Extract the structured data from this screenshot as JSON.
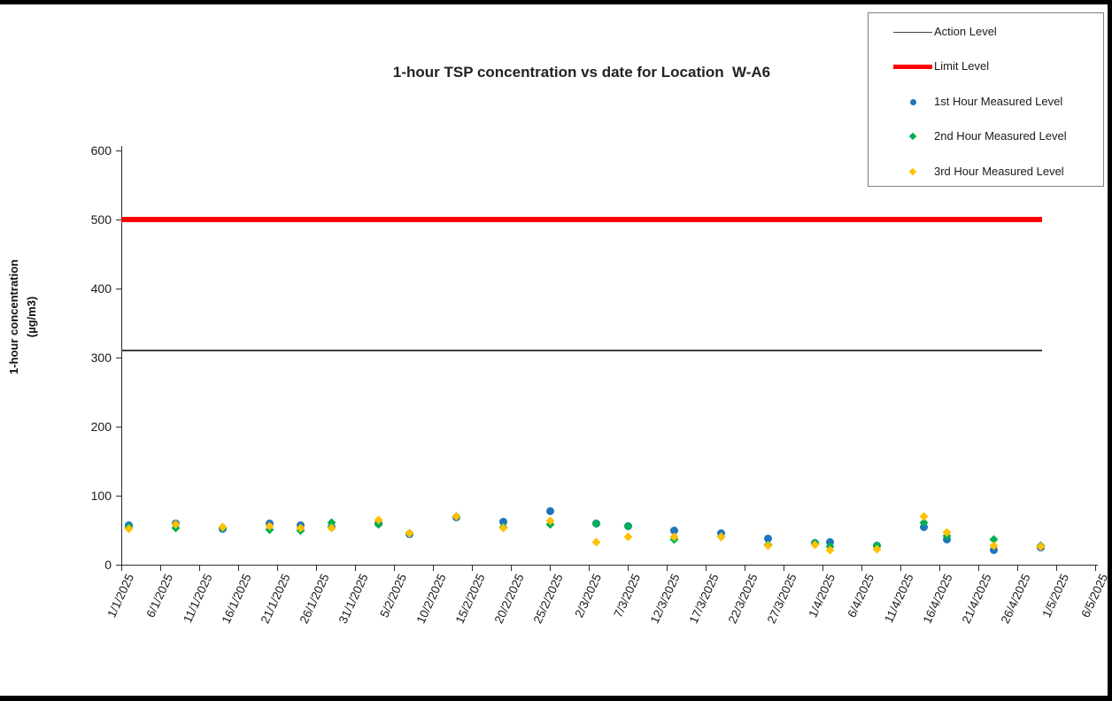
{
  "title": "1-hour TSP concentration vs date for Location  W-A6",
  "y_axis": {
    "label_line1": "1-hour concentration",
    "label_line2": "(µg/m3)"
  },
  "legend": {
    "items": [
      {
        "label": "Action Level",
        "swatch": "thin-line",
        "color": "#404040"
      },
      {
        "label": "Limit Level",
        "swatch": "thick-line",
        "color": "#FF0000"
      },
      {
        "label": "1st Hour Measured Level",
        "swatch": "circle",
        "color": "#1F75BC"
      },
      {
        "label": "2nd Hour Measured Level",
        "swatch": "diamond",
        "color": "#00B050"
      },
      {
        "label": "3rd Hour Measured Level",
        "swatch": "diamond",
        "color": "#FFC000"
      }
    ]
  },
  "chart_data": {
    "type": "scatter",
    "title": "1-hour TSP concentration vs date for Location  W-A6",
    "xlabel": "date",
    "ylabel": "1-hour concentration (µg/m3)",
    "ylim": [
      0,
      600
    ],
    "y_ticks": [
      0,
      100,
      200,
      300,
      400,
      500,
      600
    ],
    "x_tick_labels": [
      "1/1/2025",
      "6/1/2025",
      "11/1/2025",
      "16/1/2025",
      "21/1/2025",
      "26/1/2025",
      "31/1/2025",
      "5/2/2025",
      "10/2/2025",
      "15/2/2025",
      "20/2/2025",
      "25/2/2025",
      "2/3/2025",
      "7/3/2025",
      "12/3/2025",
      "17/3/2025",
      "22/3/2025",
      "27/3/2025",
      "1/4/2025",
      "6/4/2025",
      "11/4/2025",
      "16/4/2025",
      "21/4/2025",
      "26/4/2025",
      "1/5/2025",
      "6/5/2025"
    ],
    "grid": false,
    "legend_position": "top-right",
    "reference_lines": [
      {
        "name": "Action Level",
        "value": 310,
        "color": "#404040",
        "style": "thin",
        "span": [
          "1/1/2025",
          "29/4/2025"
        ]
      },
      {
        "name": "Limit Level",
        "value": 500,
        "color": "#FF0000",
        "style": "thick",
        "span": [
          "1/1/2025",
          "29/4/2025"
        ]
      }
    ],
    "x": [
      "2/1/2025",
      "8/1/2025",
      "14/1/2025",
      "20/1/2025",
      "24/1/2025",
      "28/1/2025",
      "3/2/2025",
      "7/2/2025",
      "13/2/2025",
      "19/2/2025",
      "25/2/2025",
      "3/3/2025",
      "7/3/2025",
      "13/3/2025",
      "19/3/2025",
      "25/3/2025",
      "31/3/2025",
      "2/4/2025",
      "8/4/2025",
      "14/4/2025",
      "17/4/2025",
      "23/4/2025",
      "29/4/2025"
    ],
    "series": [
      {
        "name": "1st Hour Measured Level",
        "marker": "circle",
        "color": "#1F75BC",
        "values": [
          57,
          60,
          52,
          60,
          57,
          55,
          60,
          44,
          69,
          62,
          77,
          59,
          56,
          49,
          46,
          38,
          31,
          33,
          27,
          55,
          37,
          21,
          25
        ]
      },
      {
        "name": "2nd Hour Measured Level",
        "marker": "diamond",
        "color": "#00B050",
        "values": [
          55,
          53,
          53,
          51,
          49,
          61,
          58,
          45,
          70,
          55,
          58,
          59,
          56,
          36,
          40,
          29,
          31,
          26,
          27,
          61,
          42,
          36,
          27
        ]
      },
      {
        "name": "3rd Hour Measured Level",
        "marker": "diamond",
        "color": "#FFC000",
        "values": [
          52,
          58,
          54,
          56,
          53,
          53,
          65,
          46,
          70,
          53,
          64,
          33,
          40,
          41,
          40,
          28,
          29,
          21,
          22,
          70,
          47,
          27,
          26
        ]
      }
    ]
  }
}
